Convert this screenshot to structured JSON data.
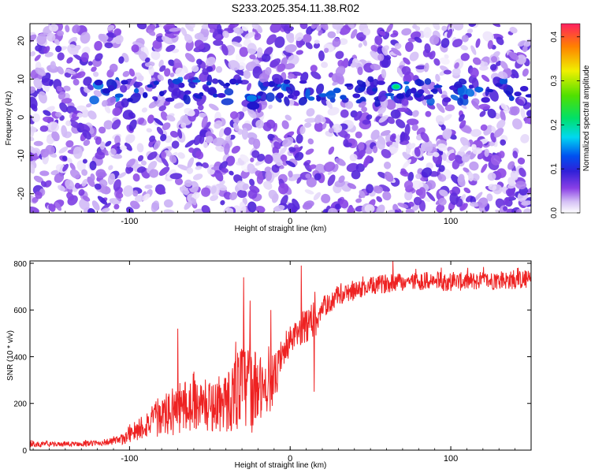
{
  "title": "S233.2025.354.11.38.R02",
  "colors": {
    "snr_line": "#ee2222",
    "colormap": [
      "#ffffff",
      "#c8a8f0",
      "#8040e0",
      "#2020d0",
      "#00d8f0",
      "#00e060",
      "#f0f000",
      "#ff8000",
      "#ff2060"
    ]
  },
  "chart_data": [
    {
      "type": "heatmap",
      "name": "spectrogram",
      "xlabel": "Height of straight line (km)",
      "ylabel": "Frequency (Hz)",
      "xlim": [
        -162,
        150
      ],
      "ylim": [
        -25,
        24.5
      ],
      "xticks": [
        -100,
        0,
        100
      ],
      "xtick_labels": [
        "-100",
        "0",
        "100"
      ],
      "yticks": [
        -20,
        -10,
        0,
        10,
        20
      ],
      "ytick_labels": [
        "-20",
        "-10",
        "0",
        "10",
        "20"
      ],
      "band_frequency": 7,
      "hotspots": [
        {
          "x": -24,
          "y": 5,
          "value": 0.22
        },
        {
          "x": -23,
          "y": 3,
          "value": 0.18
        },
        {
          "x": 66,
          "y": 8,
          "value": 0.31
        },
        {
          "x": -150,
          "y": 20,
          "value": 0.08
        },
        {
          "x": -54,
          "y": 8,
          "value": 0.09
        }
      ],
      "colorbar": {
        "label": "Normalized spectral amplitude",
        "range": [
          0,
          0.43
        ],
        "ticks": [
          0.0,
          0.1,
          0.2,
          0.3,
          0.4
        ],
        "tick_labels": [
          "0.0",
          "0.1",
          "0.2",
          "0.3",
          "0.4"
        ]
      }
    },
    {
      "type": "line",
      "name": "snr",
      "xlabel": "Height of straight line (km)",
      "ylabel": "SNR (10 * v/v)",
      "xlim": [
        -162,
        150
      ],
      "ylim": [
        0,
        810
      ],
      "xticks": [
        -100,
        0,
        100
      ],
      "xtick_labels": [
        "-100",
        "0",
        "100"
      ],
      "yticks": [
        0,
        200,
        400,
        600,
        800
      ],
      "ytick_labels": [
        "0",
        "200",
        "400",
        "600",
        "800"
      ],
      "x": [
        -162,
        -140,
        -120,
        -106,
        -100,
        -90,
        -80,
        -70,
        -60,
        -50,
        -40,
        -35,
        -30,
        -25,
        -20,
        -15,
        -10,
        -5,
        0,
        5,
        10,
        15,
        20,
        25,
        30,
        40,
        50,
        60,
        70,
        80,
        100,
        120,
        150
      ],
      "trend": [
        25,
        25,
        30,
        40,
        70,
        110,
        140,
        180,
        200,
        190,
        200,
        240,
        280,
        260,
        260,
        270,
        300,
        390,
        470,
        500,
        540,
        560,
        610,
        630,
        660,
        680,
        700,
        715,
        720,
        725,
        720,
        725,
        730
      ],
      "noise_amplitude": [
        12,
        10,
        12,
        20,
        40,
        60,
        80,
        120,
        110,
        110,
        130,
        160,
        190,
        200,
        150,
        130,
        110,
        70,
        60,
        60,
        80,
        90,
        50,
        40,
        40,
        40,
        40,
        40,
        40,
        40,
        40,
        40,
        40
      ],
      "spikes": [
        {
          "x": -70,
          "y": 520
        },
        {
          "x": -29,
          "y": 740
        },
        {
          "x": -25,
          "y": 640
        },
        {
          "x": -12,
          "y": 600
        },
        {
          "x": 7,
          "y": 790
        },
        {
          "x": 15,
          "y": 250
        },
        {
          "x": 64,
          "y": 810
        }
      ]
    }
  ]
}
